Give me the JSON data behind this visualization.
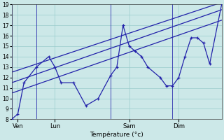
{
  "background_color": "#cce8e8",
  "grid_color": "#99cccc",
  "line_color": "#2222aa",
  "xlabel": "Température (°c)",
  "ylim": [
    8,
    19
  ],
  "yticks": [
    8,
    9,
    10,
    11,
    12,
    13,
    14,
    15,
    16,
    17,
    18,
    19
  ],
  "day_labels": [
    "Ven",
    "Lun",
    "Sam",
    "Dim"
  ],
  "day_positions": [
    0.5,
    3.5,
    9.5,
    13.5
  ],
  "vline_positions": [
    0,
    2,
    8,
    13,
    17
  ],
  "xlim": [
    0,
    17
  ],
  "main_line": {
    "x": [
      0.0,
      0.5,
      1.0,
      2.0,
      3.0,
      3.5,
      4.0,
      5.0,
      6.0,
      7.0,
      8.0,
      8.5,
      9.0,
      9.5,
      10.0,
      10.5,
      11.0,
      12.0,
      12.5,
      13.0,
      13.5,
      14.0,
      14.5,
      15.0,
      15.5,
      16.0,
      17.0
    ],
    "y": [
      8.0,
      8.5,
      11.5,
      13.0,
      14.0,
      13.0,
      11.5,
      11.5,
      9.3,
      10.0,
      12.2,
      13.0,
      17.0,
      15.0,
      14.5,
      14.0,
      13.0,
      12.0,
      11.2,
      11.2,
      12.0,
      14.0,
      15.8,
      15.8,
      15.3,
      13.3,
      19.2
    ]
  },
  "trend1": {
    "x": [
      0.0,
      17.0
    ],
    "y": [
      12.5,
      19.2
    ]
  },
  "trend2": {
    "x": [
      0.0,
      17.0
    ],
    "y": [
      11.5,
      18.5
    ]
  },
  "trend3": {
    "x": [
      0.0,
      17.0
    ],
    "y": [
      10.5,
      17.5
    ]
  }
}
